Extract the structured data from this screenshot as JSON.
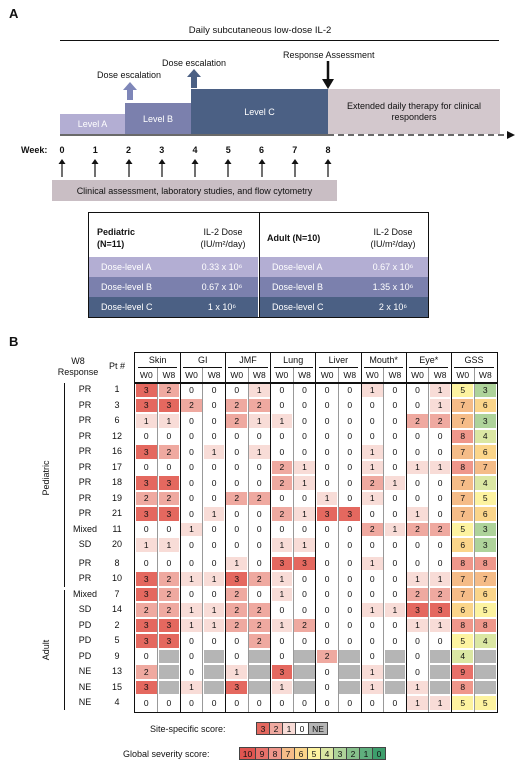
{
  "panelA": {
    "letter": "A",
    "top_label": "Daily subcutaneous low-dose IL-2",
    "dose_escalation_1": "Dose escalation",
    "dose_escalation_2": "Dose escalation",
    "response_assessment": "Response Assessment",
    "levels": [
      "Level A",
      "Level B",
      "Level C"
    ],
    "extended_text": "Extended daily therapy for clinical responders",
    "week_label": "Week:",
    "weeks": [
      "0",
      "1",
      "2",
      "3",
      "4",
      "5",
      "6",
      "7",
      "8"
    ],
    "clinical_box": "Clinical assessment, laboratory studies, and flow cytometry",
    "colors": {
      "levelA": "#b3aed3",
      "levelB": "#7b80ad",
      "levelC": "#4b6084",
      "extended": "#d3c8cd",
      "clinical": "#c9bec4",
      "arrow": "#7e86b8"
    },
    "dose_table": {
      "pediatric_title": "Pediatric",
      "pediatric_n": "(N=11)",
      "adult_title": "Adult (N=10)",
      "dose_header_1": "IL-2 Dose",
      "dose_header_2": "(IU/m²/day)",
      "rows": [
        {
          "level": "Dose-level A",
          "ped": "0.33 x 10⁶",
          "adult": "0.67 x 10⁶"
        },
        {
          "level": "Dose-level B",
          "ped": "0.67 x 10⁶",
          "adult": "1.35 x 10⁶"
        },
        {
          "level": "Dose-level C",
          "ped": "1 x 10⁶",
          "adult": "2 x 10⁶"
        }
      ]
    }
  },
  "panelB": {
    "letter": "B",
    "col_w8": "W8",
    "col_response": "Response",
    "col_pt": "Pt #",
    "sites": [
      "Skin",
      "GI",
      "JMF",
      "Lung",
      "Liver",
      "Mouth*",
      "Eye*",
      "GSS"
    ],
    "sub": [
      "W0",
      "W8"
    ],
    "groups": [
      {
        "label": "Pediatric",
        "rows": [
          {
            "resp": "PR",
            "pt": "1",
            "v": [
              "3",
              "2",
              "0",
              "0",
              "0",
              "1",
              "0",
              "0",
              "0",
              "0",
              "1",
              "0",
              "0",
              "1",
              "5",
              "3"
            ]
          },
          {
            "resp": "PR",
            "pt": "3",
            "v": [
              "3",
              "3",
              "2",
              "0",
              "2",
              "2",
              "0",
              "0",
              "0",
              "0",
              "0",
              "0",
              "0",
              "1",
              "7",
              "6"
            ]
          },
          {
            "resp": "PR",
            "pt": "6",
            "v": [
              "1",
              "1",
              "0",
              "0",
              "2",
              "1",
              "1",
              "0",
              "0",
              "0",
              "0",
              "0",
              "2",
              "2",
              "7",
              "3"
            ]
          },
          {
            "resp": "PR",
            "pt": "12",
            "v": [
              "0",
              "0",
              "0",
              "0",
              "0",
              "0",
              "0",
              "0",
              "0",
              "0",
              "0",
              "0",
              "0",
              "0",
              "8",
              "4"
            ]
          },
          {
            "resp": "PR",
            "pt": "16",
            "v": [
              "3",
              "2",
              "0",
              "1",
              "0",
              "1",
              "0",
              "0",
              "0",
              "0",
              "1",
              "0",
              "0",
              "0",
              "7",
              "6"
            ]
          },
          {
            "resp": "PR",
            "pt": "17",
            "v": [
              "0",
              "0",
              "0",
              "0",
              "0",
              "0",
              "2",
              "1",
              "0",
              "0",
              "1",
              "0",
              "1",
              "1",
              "8",
              "7"
            ]
          },
          {
            "resp": "PR",
            "pt": "18",
            "v": [
              "3",
              "3",
              "0",
              "0",
              "0",
              "0",
              "2",
              "1",
              "0",
              "0",
              "2",
              "1",
              "0",
              "0",
              "7",
              "4"
            ]
          },
          {
            "resp": "PR",
            "pt": "19",
            "v": [
              "2",
              "2",
              "0",
              "0",
              "2",
              "2",
              "0",
              "0",
              "1",
              "0",
              "1",
              "0",
              "0",
              "0",
              "7",
              "5"
            ]
          },
          {
            "resp": "PR",
            "pt": "21",
            "v": [
              "3",
              "3",
              "0",
              "1",
              "0",
              "0",
              "2",
              "1",
              "3",
              "3",
              "0",
              "0",
              "1",
              "0",
              "7",
              "6"
            ]
          },
          {
            "resp": "Mixed",
            "pt": "11",
            "v": [
              "0",
              "0",
              "1",
              "0",
              "0",
              "0",
              "0",
              "0",
              "0",
              "0",
              "2",
              "1",
              "2",
              "2",
              "5",
              "3"
            ]
          },
          {
            "resp": "SD",
            "pt": "20",
            "v": [
              "1",
              "1",
              "0",
              "0",
              "0",
              "0",
              "1",
              "1",
              "0",
              "0",
              "0",
              "0",
              "0",
              "0",
              "6",
              "3"
            ]
          }
        ]
      },
      {
        "label": "Adult",
        "rows": [
          {
            "resp": "PR",
            "pt": "8",
            "v": [
              "0",
              "0",
              "0",
              "0",
              "1",
              "0",
              "3",
              "3",
              "0",
              "0",
              "1",
              "0",
              "0",
              "0",
              "8",
              "8"
            ]
          },
          {
            "resp": "PR",
            "pt": "10",
            "v": [
              "3",
              "2",
              "1",
              "1",
              "3",
              "2",
              "1",
              "0",
              "0",
              "0",
              "0",
              "0",
              "1",
              "1",
              "7",
              "7"
            ]
          },
          {
            "resp": "Mixed",
            "pt": "7",
            "v": [
              "3",
              "2",
              "0",
              "0",
              "2",
              "0",
              "1",
              "0",
              "0",
              "0",
              "0",
              "0",
              "2",
              "2",
              "7",
              "6"
            ]
          },
          {
            "resp": "SD",
            "pt": "14",
            "v": [
              "2",
              "2",
              "1",
              "1",
              "2",
              "2",
              "0",
              "0",
              "0",
              "0",
              "1",
              "1",
              "3",
              "3",
              "6",
              "5"
            ]
          },
          {
            "resp": "PD",
            "pt": "2",
            "v": [
              "3",
              "3",
              "1",
              "1",
              "2",
              "2",
              "1",
              "2",
              "0",
              "0",
              "0",
              "0",
              "1",
              "1",
              "8",
              "8"
            ]
          },
          {
            "resp": "PD",
            "pt": "5",
            "v": [
              "3",
              "3",
              "0",
              "0",
              "0",
              "2",
              "0",
              "0",
              "0",
              "0",
              "0",
              "0",
              "0",
              "0",
              "5",
              "4"
            ]
          },
          {
            "resp": "PD",
            "pt": "9",
            "v": [
              "0",
              "NE",
              "0",
              "NE",
              "0",
              "NE",
              "0",
              "NE",
              "2",
              "NE",
              "0",
              "NE",
              "0",
              "NE",
              "4",
              "NE"
            ]
          },
          {
            "resp": "NE",
            "pt": "13",
            "v": [
              "2",
              "NE",
              "0",
              "NE",
              "1",
              "NE",
              "3",
              "NE",
              "0",
              "NE",
              "1",
              "NE",
              "0",
              "NE",
              "9",
              "NE"
            ]
          },
          {
            "resp": "NE",
            "pt": "15",
            "v": [
              "3",
              "NE",
              "1",
              "NE",
              "3",
              "NE",
              "1",
              "NE",
              "0",
              "NE",
              "1",
              "NE",
              "1",
              "NE",
              "8",
              "NE"
            ]
          },
          {
            "resp": "NE",
            "pt": "4",
            "v": [
              "0",
              "0",
              "0",
              "0",
              "0",
              "0",
              "0",
              "0",
              "0",
              "0",
              "0",
              "0",
              "1",
              "1",
              "5",
              "5"
            ]
          }
        ]
      }
    ],
    "legend": {
      "site_label": "Site-specific score:",
      "site_values": [
        "3",
        "2",
        "1",
        "0",
        "NE"
      ],
      "global_label": "Global severity score:",
      "global_values": [
        "10",
        "9",
        "8",
        "7",
        "6",
        "5",
        "4",
        "3",
        "2",
        "1",
        "0"
      ]
    },
    "site_colors": {
      "3": "#e4685f",
      "2": "#efa9a0",
      "1": "#f8dcd7",
      "0": "#ffffff",
      "NE": "#b5b5b5"
    },
    "global_colors": {
      "10": "#e05550",
      "9": "#e8716a",
      "8": "#ef978b",
      "7": "#f5bc88",
      "6": "#fbd58a",
      "5": "#fdf3a0",
      "4": "#dbe7a3",
      "3": "#aed39a",
      "2": "#86c08b",
      "1": "#5faf7d",
      "0": "#3d9e6c",
      "NE": "#b5b5b5"
    }
  }
}
